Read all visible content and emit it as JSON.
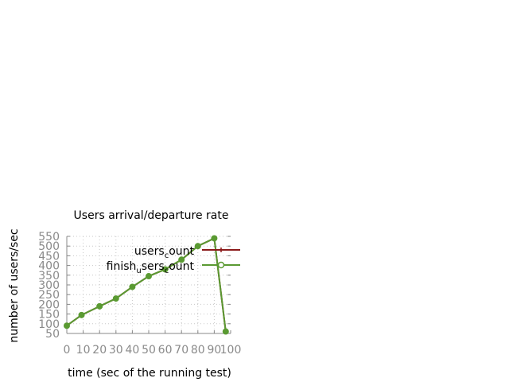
{
  "chart_data": {
    "type": "line",
    "title": "Users arrival/departure rate",
    "xlabel": "time (sec of the running test)",
    "ylabel": "number of users/sec",
    "xlim": [
      0,
      100
    ],
    "ylim": [
      50,
      550
    ],
    "x_ticks": [
      0,
      10,
      20,
      30,
      40,
      50,
      60,
      70,
      80,
      90,
      100
    ],
    "y_ticks": [
      50,
      100,
      150,
      200,
      250,
      300,
      350,
      400,
      450,
      500,
      550
    ],
    "x_tick_labels": [
      "0",
      "10",
      "20",
      "30",
      "40",
      "50",
      "60",
      "70",
      "80",
      "90",
      "100"
    ],
    "y_tick_labels": [
      "50",
      "100",
      "150",
      "200",
      "250",
      "300",
      "350",
      "400",
      "450",
      "500",
      "550"
    ],
    "grid": true,
    "legend_position": "top-right",
    "series": [
      {
        "name": "users_count",
        "legend_main": "users",
        "legend_sub": "c",
        "legend_rest": "ount",
        "color": "#8b1a1a",
        "marker": "plus",
        "x": [
          0,
          9,
          20,
          30,
          40,
          50,
          60,
          70,
          80,
          90,
          97
        ],
        "y": [
          90,
          145,
          190,
          230,
          290,
          345,
          380,
          430,
          500,
          540,
          60
        ]
      },
      {
        "name": "finish_users_count",
        "legend_main": "finish",
        "legend_sub": "u",
        "legend_rest": "sers",
        "legend_sub2": "c",
        "legend_rest2": "ount",
        "color": "#5a9a32",
        "marker": "circle",
        "x": [
          0,
          9,
          20,
          30,
          40,
          50,
          60,
          70,
          80,
          90,
          97
        ],
        "y": [
          90,
          145,
          190,
          230,
          290,
          345,
          380,
          430,
          500,
          540,
          60
        ]
      }
    ]
  }
}
